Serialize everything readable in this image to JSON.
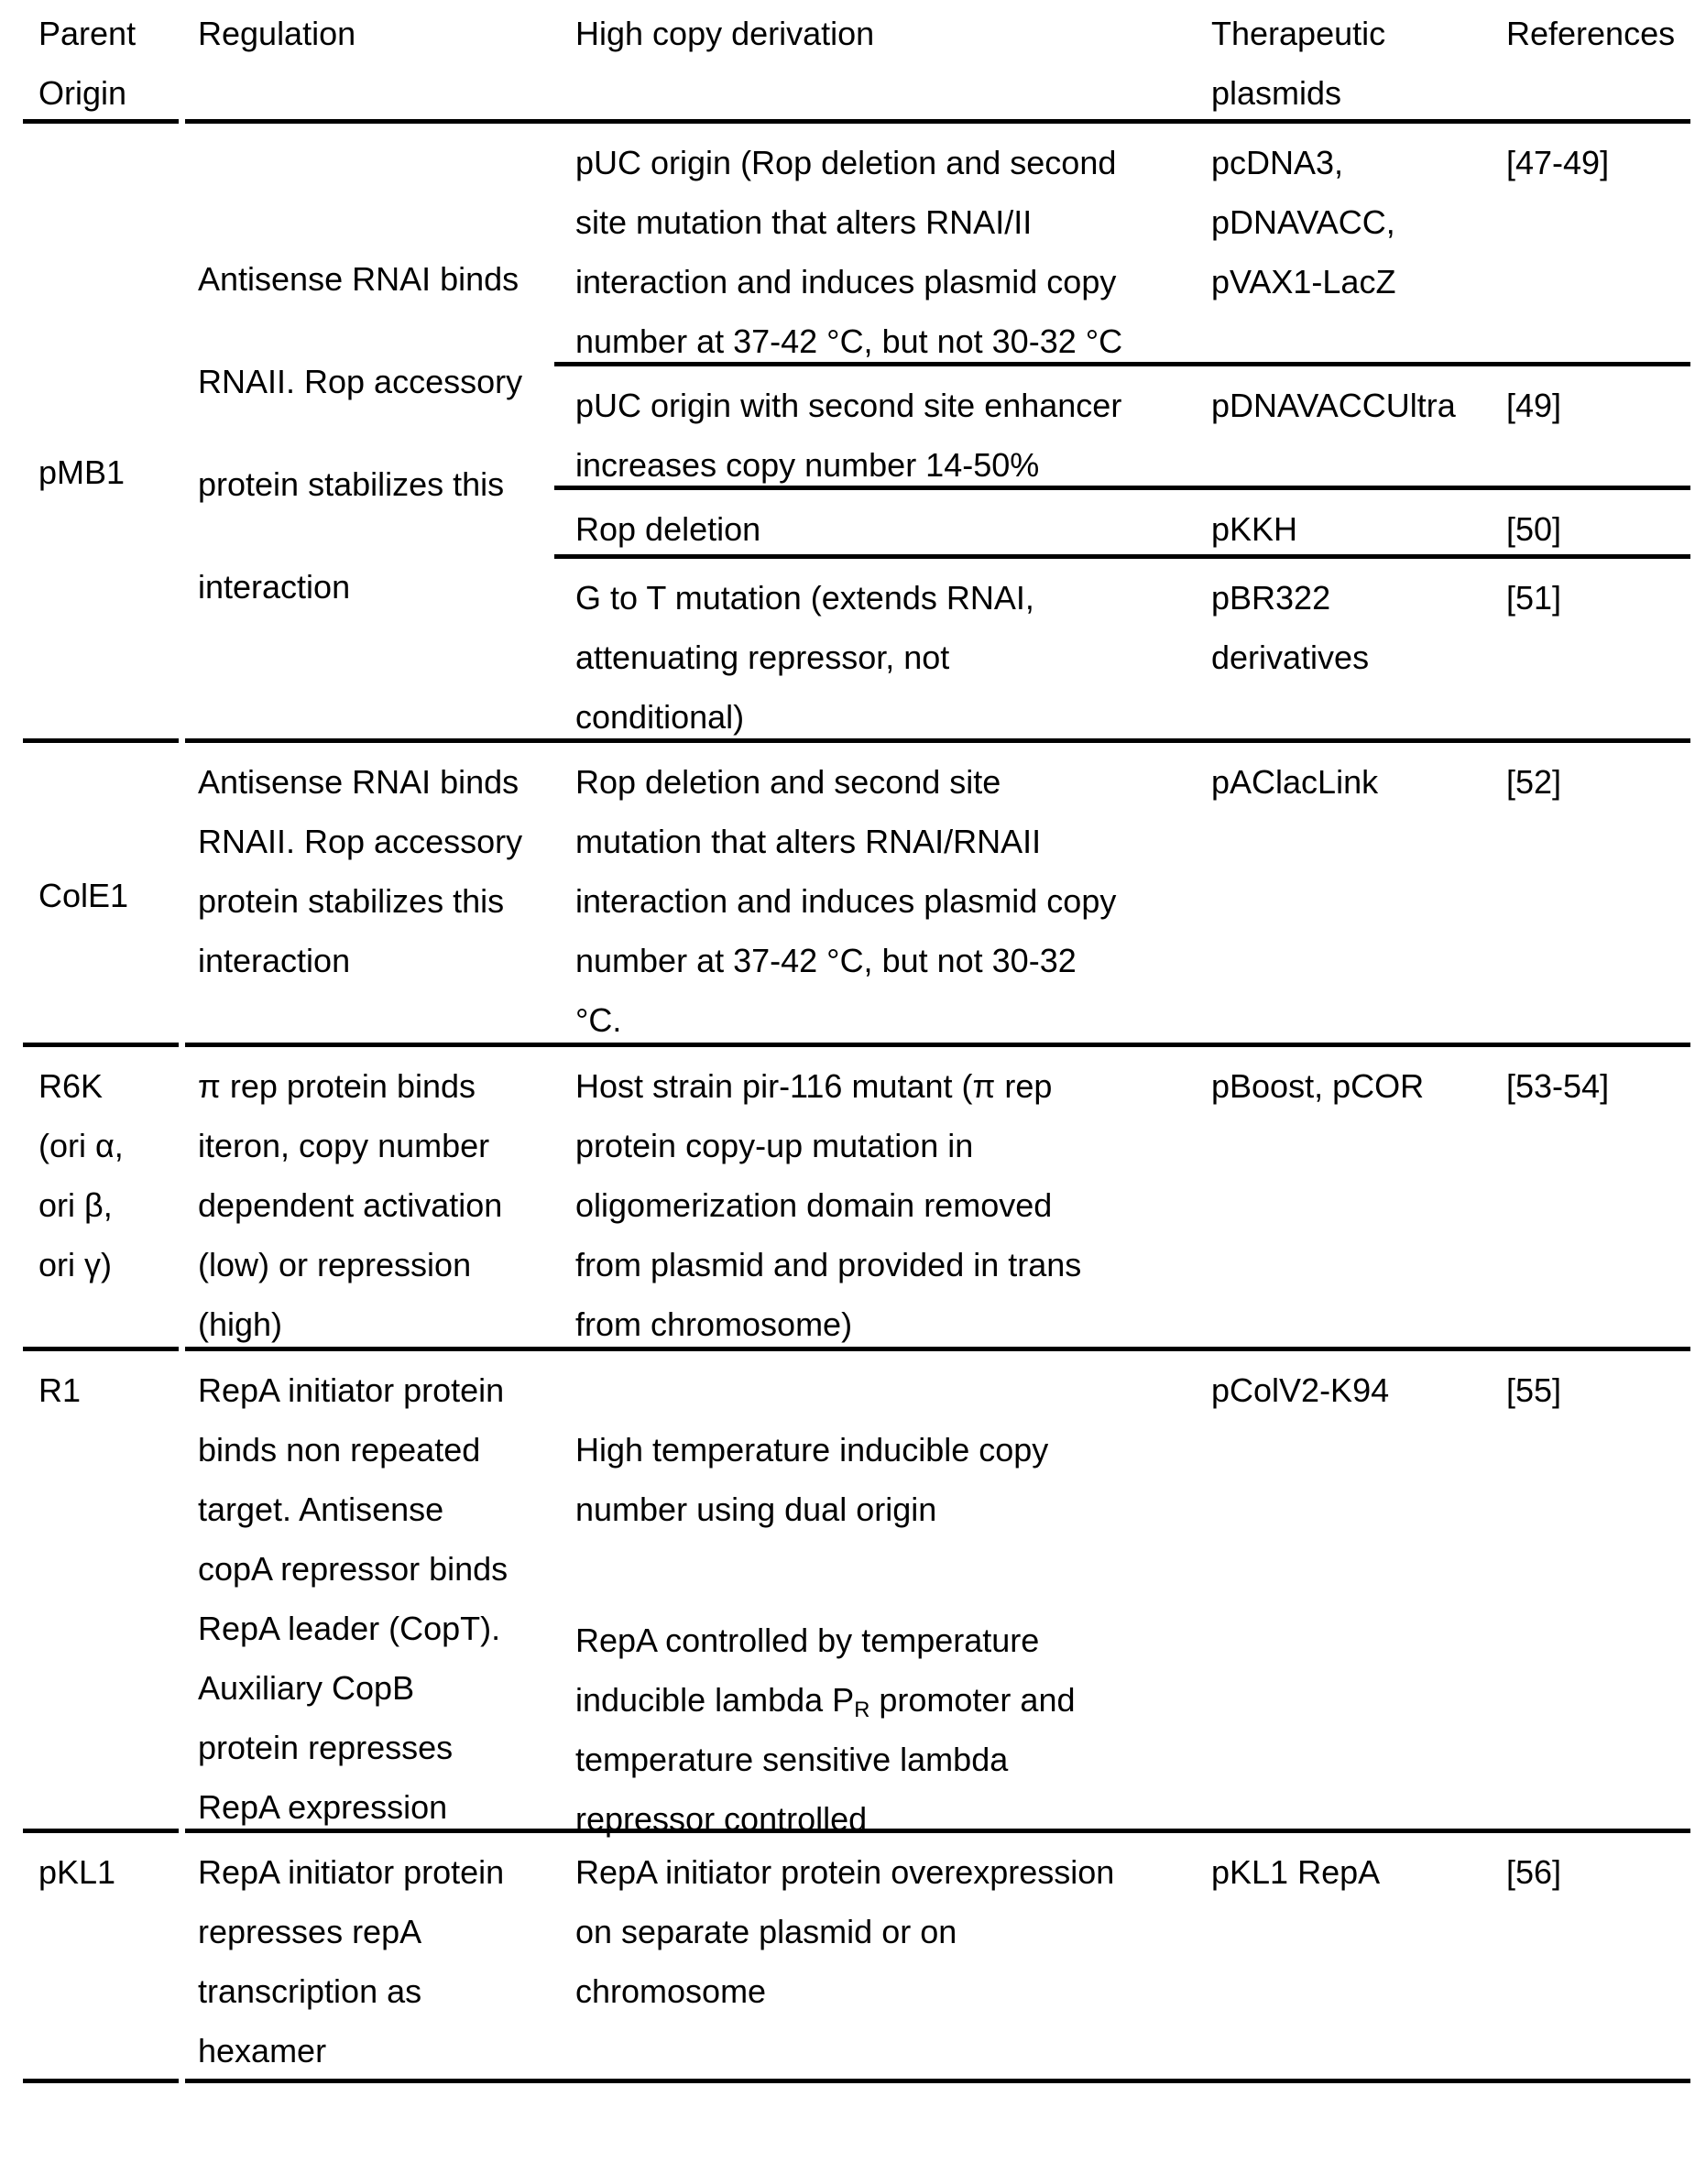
{
  "colors": {
    "text": "#000000",
    "background": "#ffffff",
    "rule": "#000000"
  },
  "header": {
    "parent_origin": "Parent\nOrigin",
    "regulation": "Regulation",
    "high_copy_derivation": "High copy derivation",
    "therapeutic_plasmids": "Therapeutic\nplasmids",
    "references": "References"
  },
  "rows": [
    {
      "parent": "pMB1",
      "regulation": "Antisense RNAI binds\nRNAII. Rop accessory\nprotein stabilizes this\ninteraction",
      "derivations": [
        {
          "derivation": "pUC origin (Rop deletion and second\nsite mutation that alters RNAI/II\ninteraction and induces plasmid copy\nnumber at 37-42 °C, but not 30-32 °C",
          "plasmids": "pcDNA3,\npDNAVACC,\npVAX1-LacZ",
          "references": "[47-49]"
        },
        {
          "derivation": "pUC origin with second site enhancer\nincreases copy number 14-50%",
          "plasmids": "pDNAVACCUltra",
          "references": "[49]"
        },
        {
          "derivation": "Rop deletion",
          "plasmids": "pKKH",
          "references": "[50]"
        },
        {
          "derivation": "G to T mutation (extends RNAI,\nattenuating repressor, not\nconditional)",
          "plasmids": "pBR322\nderivatives",
          "references": "[51]"
        }
      ]
    },
    {
      "parent": "ColE1",
      "regulation": "Antisense RNAI binds\nRNAII. Rop accessory\nprotein stabilizes this\ninteraction",
      "derivations": [
        {
          "derivation": "Rop deletion and second site\nmutation that alters RNAI/RNAII\ninteraction and induces plasmid copy\nnumber at 37-42 °C, but not 30-32\n°C.",
          "plasmids": "pAClacLink",
          "references": "[52]"
        }
      ]
    },
    {
      "parent": "R6K\n(ori α,\nori β,\nori γ)",
      "regulation": "π rep protein binds\niteron, copy number\ndependent activation\n(low) or repression\n(high)",
      "derivations": [
        {
          "derivation": "Host strain pir-116 mutant (π rep\nprotein copy-up mutation in\noligomerization domain removed\nfrom plasmid and provided in trans\nfrom chromosome)",
          "plasmids": "pBoost, pCOR",
          "references": "[53-54]"
        }
      ]
    },
    {
      "parent": "R1",
      "regulation": "RepA initiator protein\nbinds non repeated\ntarget. Antisense\ncopA repressor binds\nRepA leader (CopT).\nAuxiliary CopB\nprotein represses\nRepA expression",
      "derivations": [
        {
          "derivation_p1": "High temperature inducible copy\nnumber using dual origin",
          "derivation_p2_pre": "RepA controlled by temperature\ninducible lambda P",
          "derivation_p2_sub": "R",
          "derivation_p2_post": " promoter and\ntemperature sensitive lambda\nrepressor controlled",
          "plasmids": "pColV2-K94",
          "references": "[55]"
        }
      ]
    },
    {
      "parent": "pKL1",
      "regulation": "RepA initiator protein\nrepresses repA\ntranscription as\nhexamer",
      "derivations": [
        {
          "derivation": "RepA initiator protein overexpression\non separate plasmid or on\nchromosome",
          "plasmids": "pKL1 RepA",
          "references": "[56]"
        }
      ]
    }
  ]
}
